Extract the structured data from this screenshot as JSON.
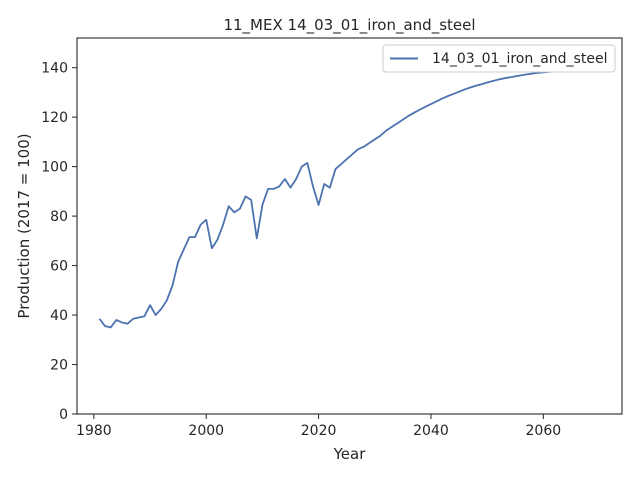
{
  "chart_data": {
    "type": "line",
    "title": "11_MEX 14_03_01_iron_and_steel",
    "xlabel": "Year",
    "ylabel": "Production (2017 = 100)",
    "xlim": [
      1977,
      2074
    ],
    "ylim": [
      0,
      152
    ],
    "xticks": [
      1980,
      2000,
      2020,
      2040,
      2060
    ],
    "yticks": [
      0,
      20,
      40,
      60,
      80,
      100,
      120,
      140
    ],
    "grid": false,
    "legend": {
      "position": "top-right",
      "entries": [
        "14_03_01_iron_and_steel"
      ]
    },
    "colors": {
      "series": "#4c72b0",
      "axes": "#262626"
    },
    "series": [
      {
        "name": "14_03_01_iron_and_steel",
        "x": [
          1981,
          1982,
          1983,
          1984,
          1985,
          1986,
          1987,
          1988,
          1989,
          1990,
          1991,
          1992,
          1993,
          1994,
          1995,
          1996,
          1997,
          1998,
          1999,
          2000,
          2001,
          2002,
          2003,
          2004,
          2005,
          2006,
          2007,
          2008,
          2009,
          2010,
          2011,
          2012,
          2013,
          2014,
          2015,
          2016,
          2017,
          2018,
          2019,
          2020,
          2021,
          2022,
          2023,
          2024,
          2025,
          2026,
          2027,
          2028,
          2029,
          2030,
          2031,
          2032,
          2033,
          2034,
          2035,
          2036,
          2037,
          2038,
          2039,
          2040,
          2041,
          2042,
          2043,
          2044,
          2045,
          2046,
          2047,
          2048,
          2049,
          2050,
          2051,
          2052,
          2053,
          2054,
          2055,
          2056,
          2057,
          2058,
          2059,
          2060,
          2061,
          2062,
          2063,
          2064,
          2065,
          2066,
          2067,
          2068,
          2069,
          2070
        ],
        "values": [
          38.5,
          35.5,
          35,
          38,
          37,
          36.5,
          38.5,
          39,
          39.5,
          44,
          40,
          42.5,
          46,
          52,
          61.5,
          66.5,
          71.5,
          71.5,
          76.5,
          78.5,
          67,
          70.5,
          76.5,
          84,
          81.5,
          83,
          88,
          86.5,
          71,
          84.5,
          91,
          91,
          92,
          95,
          91.5,
          95,
          100,
          101.5,
          92,
          84.5,
          93,
          91.5,
          99,
          101,
          103,
          105,
          107,
          108,
          109.5,
          111,
          112.5,
          114.5,
          116,
          117.5,
          119,
          120.5,
          121.8,
          123,
          124.2,
          125.3,
          126.4,
          127.5,
          128.5,
          129.4,
          130.3,
          131.2,
          132,
          132.7,
          133.3,
          134,
          134.6,
          135.2,
          135.7,
          136.1,
          136.5,
          136.9,
          137.3,
          137.6,
          137.9,
          138.1,
          138.3,
          138.5,
          138.6,
          138.7,
          138.8,
          138.8,
          138.8,
          138.8,
          138.8,
          138.7
        ]
      }
    ]
  }
}
